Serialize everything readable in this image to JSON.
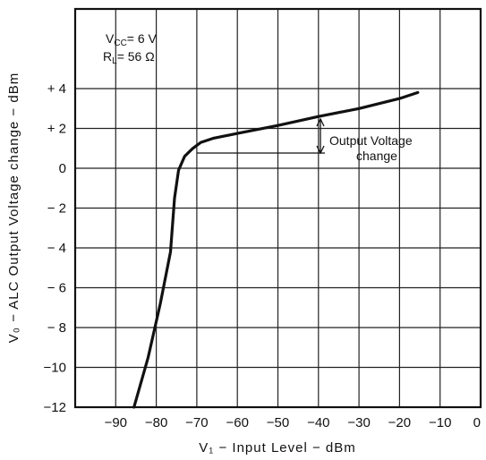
{
  "chart_data": {
    "type": "line",
    "xlabel": "V₁ − Input Level − dBm",
    "ylabel": "V₀ − ALC Output Voltage change − dBm",
    "xlim": [
      -100,
      0
    ],
    "ylim": [
      -12,
      8
    ],
    "grid": true,
    "x_ticks": [
      -90,
      -80,
      -70,
      -60,
      -50,
      -40,
      -30,
      -20,
      -10,
      0
    ],
    "x_tick_labels": [
      "−90",
      "−80",
      "−70",
      "−60",
      "−50",
      "−40",
      "−30",
      "−20",
      "−10",
      "0"
    ],
    "y_ticks": [
      4,
      2,
      0,
      -2,
      -4,
      -6,
      -8,
      -10,
      -12
    ],
    "y_tick_labels": [
      "+ 4",
      "+ 2",
      "0",
      "− 2",
      "− 4",
      "− 6",
      "− 8",
      "−10",
      "−12"
    ],
    "series": [
      {
        "x": [
          -85.5,
          -82,
          -79,
          -76.5,
          -75.5,
          -74.5,
          -73,
          -71,
          -69,
          -66,
          -60,
          -50,
          -40,
          -30,
          -20,
          -15.5
        ],
        "y": [
          -12,
          -9.5,
          -6.8,
          -4.2,
          -1.5,
          -0.1,
          0.6,
          1.0,
          1.3,
          1.5,
          1.75,
          2.15,
          2.6,
          3.0,
          3.5,
          3.8
        ]
      }
    ],
    "annotations": {
      "conditions": [
        "V",
        "CC",
        "= 6 V",
        "R",
        "L",
        "= 56 Ω"
      ],
      "output_voltage_change": [
        "Output  Voltage",
        "change"
      ],
      "bracket_x": -40,
      "bracket_y_low": 0.8,
      "bracket_y_high": 2.6
    }
  }
}
